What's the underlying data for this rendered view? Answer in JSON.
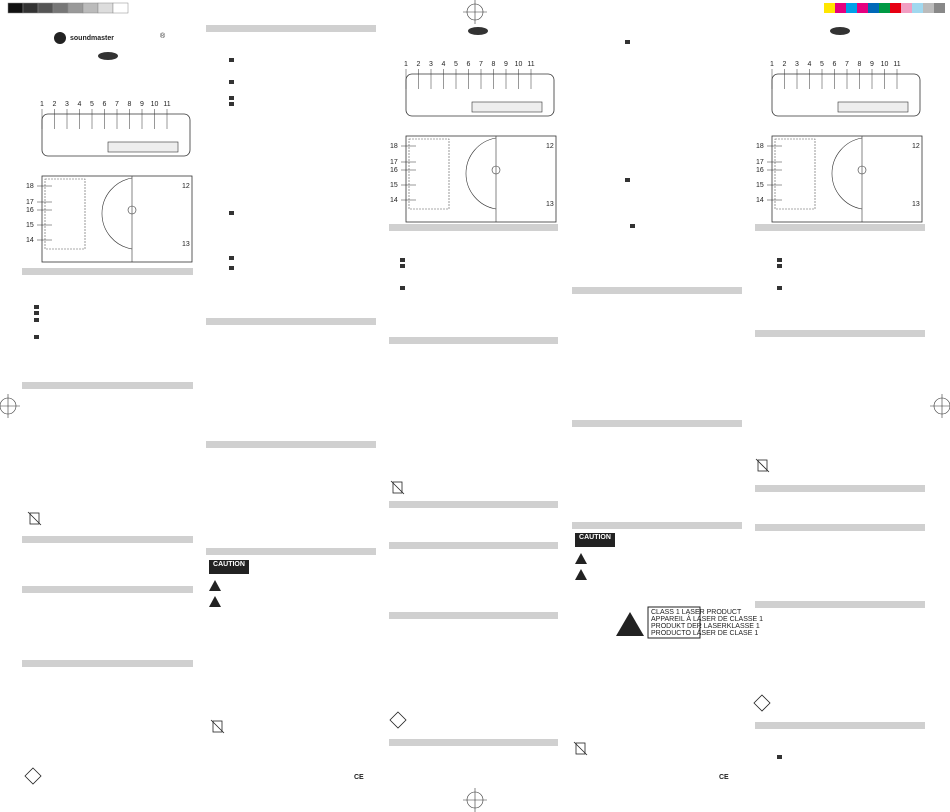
{
  "header": {
    "brand": "soundmaster",
    "mark": "®"
  },
  "diagrams": [
    {
      "top_callouts": [
        "1",
        "2",
        "3",
        "4",
        "5",
        "6",
        "7",
        "8",
        "9",
        "10",
        "11"
      ],
      "left_callouts": [
        "18",
        "17",
        "16",
        "15",
        "14"
      ],
      "right_callouts": [
        "12",
        "13"
      ]
    },
    {
      "top_callouts": [
        "1",
        "2",
        "3",
        "4",
        "5",
        "6",
        "7",
        "8",
        "9",
        "10",
        "11"
      ],
      "left_callouts": [
        "18",
        "17",
        "16",
        "15",
        "14"
      ],
      "right_callouts": [
        "12",
        "13"
      ]
    },
    {
      "top_callouts": [
        "1",
        "2",
        "3",
        "4",
        "5",
        "6",
        "7",
        "8",
        "9",
        "10",
        "11"
      ],
      "left_callouts": [
        "18",
        "17",
        "16",
        "15",
        "14"
      ],
      "right_callouts": [
        "12",
        "13"
      ]
    }
  ],
  "caution_labels": [
    "CAUTION",
    "CAUTION"
  ],
  "laser_label": [
    "CLASS 1 LASER PRODUCT",
    "APPAREIL À LASER DE CLASSE 1",
    "PRODUKT DER LASERKLASSE 1",
    "PRODUCTO LÁSER DE CLASE 1"
  ],
  "ce_marks": [
    "CE",
    "CE"
  ]
}
